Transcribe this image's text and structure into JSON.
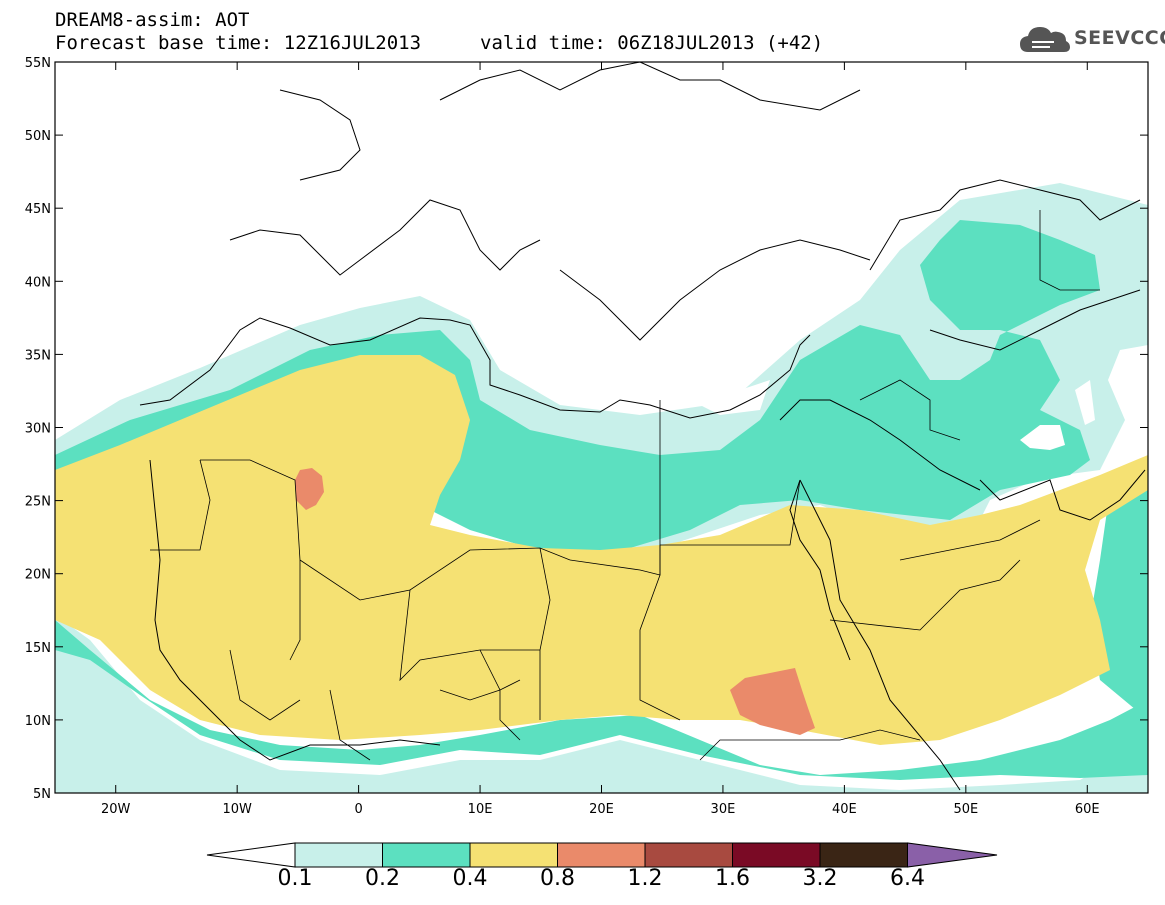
{
  "header": {
    "title": "DREAM8-assim: AOT",
    "base_time": "Forecast base time: 12Z16JUL2013",
    "valid_time": "valid time: 06Z18JUL2013 (+42)"
  },
  "logo": {
    "text": "SEEVCCC",
    "icon": "cloud-icon"
  },
  "map": {
    "lon_range": [
      -25,
      65
    ],
    "lat_range": [
      5,
      55
    ],
    "lon_ticks": [
      "20W",
      "10W",
      "0",
      "10E",
      "20E",
      "30E",
      "40E",
      "50E",
      "60E"
    ],
    "lat_ticks": [
      "55N",
      "50N",
      "45N",
      "40N",
      "35N",
      "30N",
      "25N",
      "20N",
      "15N",
      "10N",
      "5N"
    ]
  },
  "colorbar": {
    "levels": [
      "0.1",
      "0.2",
      "0.4",
      "0.8",
      "1.2",
      "1.6",
      "3.2",
      "6.4"
    ],
    "colors": [
      "#c8f0ea",
      "#5ce0c0",
      "#f5e173",
      "#ea8a6a",
      "#a84a40",
      "#7a0a25",
      "#3a2515",
      "#8a60a8"
    ],
    "under_color": "#ffffff"
  }
}
